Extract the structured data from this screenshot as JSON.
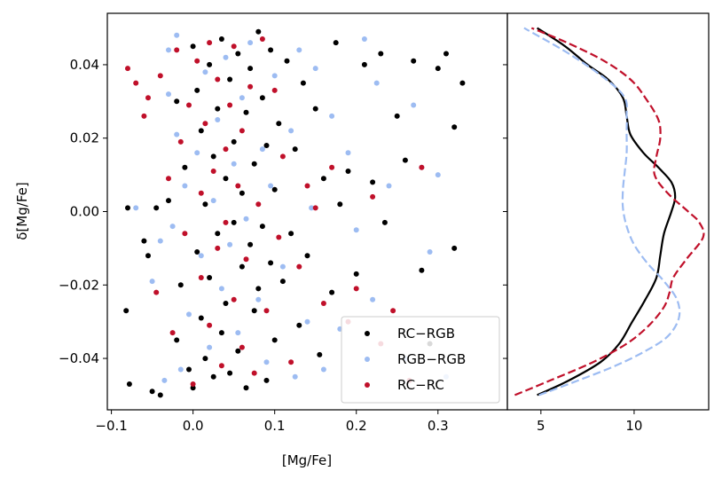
{
  "chart_data": [
    {
      "type": "scatter",
      "panel": "main",
      "xlabel": "[Mg/Fe]",
      "ylabel": "δ[Mg/Fe]",
      "xlim": [
        -0.105,
        0.385
      ],
      "ylim": [
        -0.054,
        0.054
      ],
      "xticks": [
        -0.1,
        0.0,
        0.1,
        0.2,
        0.3
      ],
      "xtick_labels": [
        "−0.1",
        "0.0",
        "0.1",
        "0.2",
        "0.3"
      ],
      "yticks": [
        -0.04,
        -0.02,
        0.0,
        0.02,
        0.04
      ],
      "ytick_labels": [
        "−0.04",
        "−0.02",
        "0.00",
        "0.02",
        "0.04"
      ],
      "legend": {
        "placement": "lower-right",
        "entries": [
          "RC−RGB",
          "RGB−RGB",
          "RC−RC"
        ]
      },
      "series": [
        {
          "name": "RC−RGB",
          "color": "#000000",
          "points": [
            [
              -0.08,
              0.001
            ],
            [
              -0.078,
              -0.047
            ],
            [
              -0.082,
              -0.027
            ],
            [
              -0.06,
              -0.008
            ],
            [
              -0.055,
              -0.012
            ],
            [
              -0.05,
              -0.049
            ],
            [
              -0.045,
              0.001
            ],
            [
              -0.04,
              -0.05
            ],
            [
              -0.03,
              0.003
            ],
            [
              -0.02,
              -0.035
            ],
            [
              -0.02,
              0.03
            ],
            [
              -0.015,
              -0.02
            ],
            [
              -0.01,
              0.012
            ],
            [
              -0.005,
              -0.043
            ],
            [
              0.0,
              0.045
            ],
            [
              0.0,
              -0.048
            ],
            [
              0.005,
              0.033
            ],
            [
              0.005,
              -0.011
            ],
            [
              0.01,
              -0.029
            ],
            [
              0.01,
              0.022
            ],
            [
              0.015,
              0.002
            ],
            [
              0.015,
              -0.04
            ],
            [
              0.02,
              0.04
            ],
            [
              0.02,
              -0.018
            ],
            [
              0.025,
              0.015
            ],
            [
              0.025,
              -0.045
            ],
            [
              0.03,
              0.028
            ],
            [
              0.03,
              -0.006
            ],
            [
              0.035,
              -0.033
            ],
            [
              0.035,
              0.047
            ],
            [
              0.04,
              0.009
            ],
            [
              0.04,
              -0.025
            ],
            [
              0.045,
              0.036
            ],
            [
              0.045,
              -0.044
            ],
            [
              0.05,
              -0.003
            ],
            [
              0.05,
              0.019
            ],
            [
              0.055,
              -0.038
            ],
            [
              0.055,
              0.043
            ],
            [
              0.06,
              0.005
            ],
            [
              0.06,
              -0.015
            ],
            [
              0.065,
              0.027
            ],
            [
              0.065,
              -0.048
            ],
            [
              0.07,
              -0.009
            ],
            [
              0.07,
              0.039
            ],
            [
              0.075,
              -0.027
            ],
            [
              0.075,
              0.013
            ],
            [
              0.08,
              0.049
            ],
            [
              0.08,
              -0.021
            ],
            [
              0.085,
              0.031
            ],
            [
              0.085,
              -0.004
            ],
            [
              0.09,
              -0.046
            ],
            [
              0.09,
              0.018
            ],
            [
              0.095,
              -0.014
            ],
            [
              0.095,
              0.044
            ],
            [
              0.1,
              0.006
            ],
            [
              0.1,
              -0.035
            ],
            [
              0.105,
              0.024
            ],
            [
              0.11,
              -0.019
            ],
            [
              0.115,
              0.041
            ],
            [
              0.12,
              -0.006
            ],
            [
              0.125,
              0.017
            ],
            [
              0.13,
              -0.031
            ],
            [
              0.135,
              0.035
            ],
            [
              0.14,
              -0.012
            ],
            [
              0.15,
              0.028
            ],
            [
              0.155,
              -0.039
            ],
            [
              0.16,
              0.009
            ],
            [
              0.17,
              -0.022
            ],
            [
              0.175,
              0.046
            ],
            [
              0.18,
              0.002
            ],
            [
              0.19,
              0.011
            ],
            [
              0.2,
              -0.017
            ],
            [
              0.21,
              0.04
            ],
            [
              0.22,
              0.008
            ],
            [
              0.23,
              0.043
            ],
            [
              0.235,
              -0.003
            ],
            [
              0.25,
              0.026
            ],
            [
              0.26,
              0.014
            ],
            [
              0.27,
              0.041
            ],
            [
              0.28,
              -0.016
            ],
            [
              0.29,
              -0.036
            ],
            [
              0.3,
              0.039
            ],
            [
              0.31,
              0.043
            ],
            [
              0.32,
              -0.01
            ],
            [
              0.32,
              0.023
            ],
            [
              0.33,
              0.035
            ]
          ]
        },
        {
          "name": "RGB−RGB",
          "color": "#9dbcf2",
          "points": [
            [
              -0.07,
              0.001
            ],
            [
              -0.05,
              -0.019
            ],
            [
              -0.04,
              -0.008
            ],
            [
              -0.035,
              -0.046
            ],
            [
              -0.03,
              0.044
            ],
            [
              -0.03,
              0.032
            ],
            [
              -0.025,
              -0.004
            ],
            [
              -0.02,
              0.021
            ],
            [
              -0.02,
              0.048
            ],
            [
              -0.015,
              -0.043
            ],
            [
              -0.01,
              0.007
            ],
            [
              -0.005,
              -0.028
            ],
            [
              0.005,
              0.016
            ],
            [
              0.01,
              -0.012
            ],
            [
              0.015,
              0.038
            ],
            [
              0.02,
              -0.037
            ],
            [
              0.025,
              0.003
            ],
            [
              0.03,
              0.025
            ],
            [
              0.035,
              -0.021
            ],
            [
              0.04,
              0.042
            ],
            [
              0.045,
              -0.009
            ],
            [
              0.05,
              0.013
            ],
            [
              0.055,
              -0.033
            ],
            [
              0.06,
              0.031
            ],
            [
              0.065,
              -0.002
            ],
            [
              0.07,
              0.046
            ],
            [
              0.08,
              -0.024
            ],
            [
              0.085,
              0.017
            ],
            [
              0.09,
              -0.041
            ],
            [
              0.095,
              0.007
            ],
            [
              0.1,
              0.037
            ],
            [
              0.11,
              -0.015
            ],
            [
              0.12,
              0.022
            ],
            [
              0.125,
              -0.045
            ],
            [
              0.13,
              0.044
            ],
            [
              0.14,
              -0.03
            ],
            [
              0.145,
              0.001
            ],
            [
              0.15,
              0.039
            ],
            [
              0.16,
              -0.043
            ],
            [
              0.17,
              0.026
            ],
            [
              0.18,
              -0.032
            ],
            [
              0.19,
              0.016
            ],
            [
              0.2,
              -0.005
            ],
            [
              0.21,
              0.047
            ],
            [
              0.22,
              -0.024
            ],
            [
              0.225,
              0.035
            ],
            [
              0.24,
              0.007
            ],
            [
              0.26,
              -0.04
            ],
            [
              0.27,
              0.029
            ],
            [
              0.28,
              0.012
            ],
            [
              0.29,
              -0.011
            ],
            [
              0.3,
              0.01
            ],
            [
              0.31,
              -0.045
            ]
          ]
        },
        {
          "name": "RC−RC",
          "color": "#c0102a",
          "points": [
            [
              -0.08,
              0.039
            ],
            [
              -0.07,
              0.035
            ],
            [
              -0.06,
              0.026
            ],
            [
              -0.055,
              0.031
            ],
            [
              -0.045,
              -0.022
            ],
            [
              -0.04,
              0.037
            ],
            [
              -0.03,
              0.009
            ],
            [
              -0.025,
              -0.033
            ],
            [
              -0.02,
              0.044
            ],
            [
              -0.015,
              0.019
            ],
            [
              -0.01,
              -0.006
            ],
            [
              -0.005,
              0.029
            ],
            [
              0.0,
              -0.047
            ],
            [
              0.005,
              0.041
            ],
            [
              0.01,
              0.005
            ],
            [
              0.01,
              -0.018
            ],
            [
              0.015,
              0.024
            ],
            [
              0.02,
              -0.031
            ],
            [
              0.02,
              0.046
            ],
            [
              0.025,
              0.011
            ],
            [
              0.03,
              -0.01
            ],
            [
              0.03,
              0.036
            ],
            [
              0.035,
              -0.042
            ],
            [
              0.04,
              0.017
            ],
            [
              0.04,
              -0.003
            ],
            [
              0.045,
              0.029
            ],
            [
              0.05,
              -0.024
            ],
            [
              0.05,
              0.045
            ],
            [
              0.055,
              0.007
            ],
            [
              0.06,
              -0.037
            ],
            [
              0.06,
              0.022
            ],
            [
              0.065,
              -0.013
            ],
            [
              0.07,
              0.034
            ],
            [
              0.075,
              -0.044
            ],
            [
              0.08,
              0.002
            ],
            [
              0.085,
              0.047
            ],
            [
              0.09,
              -0.027
            ],
            [
              0.1,
              0.033
            ],
            [
              0.105,
              -0.007
            ],
            [
              0.11,
              0.015
            ],
            [
              0.12,
              -0.041
            ],
            [
              0.13,
              -0.015
            ],
            [
              0.14,
              0.007
            ],
            [
              0.15,
              0.001
            ],
            [
              0.16,
              -0.025
            ],
            [
              0.17,
              0.012
            ],
            [
              0.19,
              -0.03
            ],
            [
              0.2,
              -0.021
            ],
            [
              0.22,
              0.004
            ],
            [
              0.23,
              -0.036
            ],
            [
              0.245,
              -0.027
            ],
            [
              0.265,
              -0.046
            ],
            [
              0.28,
              0.012
            ]
          ]
        }
      ]
    },
    {
      "type": "line",
      "panel": "side",
      "title": "",
      "xlim": [
        3.2,
        14.0
      ],
      "ylim": [
        -0.054,
        0.054
      ],
      "xticks": [
        5,
        10
      ],
      "xtick_labels": [
        "5",
        "10"
      ],
      "series": [
        {
          "name": "RC−RGB",
          "color": "#000000",
          "dash": "solid",
          "points": [
            [
              4.8,
              -0.05
            ],
            [
              6.5,
              -0.046
            ],
            [
              8.2,
              -0.041
            ],
            [
              9.2,
              -0.036
            ],
            [
              9.9,
              -0.03
            ],
            [
              10.6,
              -0.024
            ],
            [
              11.2,
              -0.018
            ],
            [
              11.4,
              -0.012
            ],
            [
              11.6,
              -0.006
            ],
            [
              12.0,
              0.0
            ],
            [
              12.2,
              0.004
            ],
            [
              12.0,
              0.008
            ],
            [
              11.3,
              0.012
            ],
            [
              10.5,
              0.016
            ],
            [
              9.8,
              0.021
            ],
            [
              9.6,
              0.026
            ],
            [
              9.4,
              0.031
            ],
            [
              8.6,
              0.036
            ],
            [
              7.5,
              0.04
            ],
            [
              6.3,
              0.045
            ],
            [
              4.8,
              0.05
            ]
          ]
        },
        {
          "name": "RGB−RGB",
          "color": "#9dbcf2",
          "dash": "dashed",
          "points": [
            [
              4.9,
              -0.05
            ],
            [
              7.0,
              -0.046
            ],
            [
              9.0,
              -0.042
            ],
            [
              10.6,
              -0.038
            ],
            [
              11.8,
              -0.034
            ],
            [
              12.4,
              -0.029
            ],
            [
              12.3,
              -0.024
            ],
            [
              11.6,
              -0.019
            ],
            [
              10.7,
              -0.014
            ],
            [
              10.0,
              -0.009
            ],
            [
              9.6,
              -0.004
            ],
            [
              9.4,
              0.001
            ],
            [
              9.4,
              0.006
            ],
            [
              9.5,
              0.011
            ],
            [
              9.6,
              0.016
            ],
            [
              9.6,
              0.021
            ],
            [
              9.6,
              0.026
            ],
            [
              9.5,
              0.031
            ],
            [
              8.5,
              0.036
            ],
            [
              6.5,
              0.043
            ],
            [
              4.1,
              0.05
            ]
          ]
        },
        {
          "name": "RC−RC",
          "color": "#c0102a",
          "dash": "dashed",
          "points": [
            [
              3.6,
              -0.05
            ],
            [
              5.5,
              -0.046
            ],
            [
              7.8,
              -0.041
            ],
            [
              9.6,
              -0.036
            ],
            [
              10.8,
              -0.031
            ],
            [
              11.6,
              -0.026
            ],
            [
              11.9,
              -0.022
            ],
            [
              12.1,
              -0.018
            ],
            [
              12.8,
              -0.013
            ],
            [
              13.7,
              -0.007
            ],
            [
              13.5,
              -0.003
            ],
            [
              12.9,
              0.0
            ],
            [
              11.8,
              0.005
            ],
            [
              11.1,
              0.01
            ],
            [
              11.2,
              0.015
            ],
            [
              11.4,
              0.02
            ],
            [
              11.3,
              0.025
            ],
            [
              10.6,
              0.031
            ],
            [
              9.8,
              0.036
            ],
            [
              8.4,
              0.041
            ],
            [
              6.4,
              0.046
            ],
            [
              4.5,
              0.05
            ]
          ]
        }
      ]
    }
  ]
}
